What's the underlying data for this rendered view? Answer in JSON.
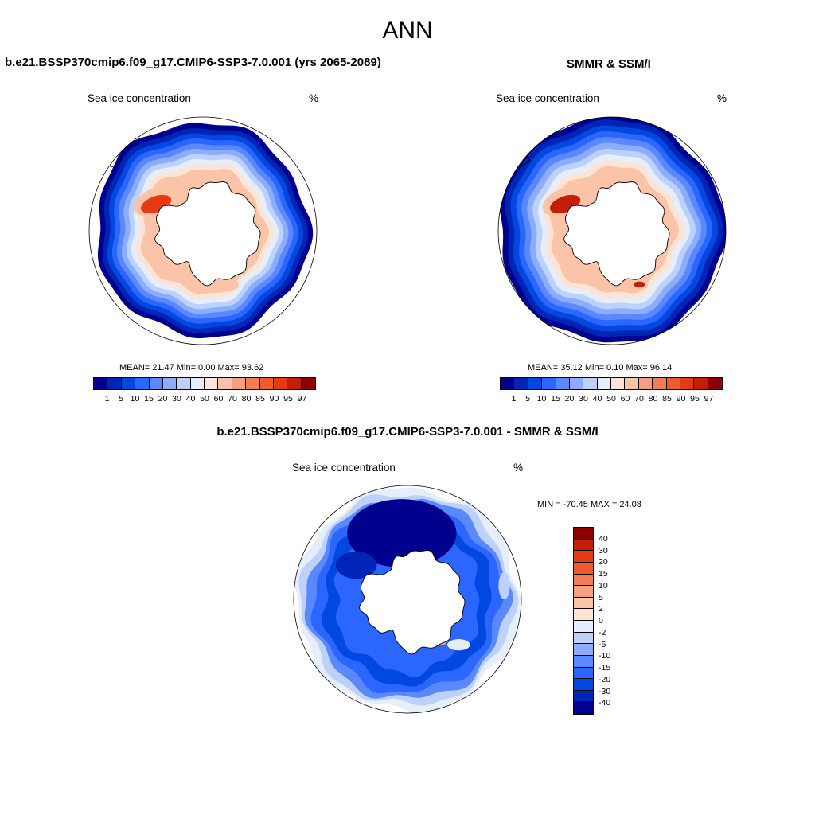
{
  "title": "ANN",
  "colors": {
    "conc_palette": [
      "#00008f",
      "#0024b5",
      "#0048e0",
      "#2a66ff",
      "#5a88ff",
      "#8cacfc",
      "#bcd2fa",
      "#e6eefc",
      "#fde4d4",
      "#fbc4a8",
      "#f7a07e",
      "#f57c58",
      "#f05a32",
      "#e63a14",
      "#c41e08",
      "#8c0000"
    ],
    "diff_palette": [
      "#00008f",
      "#0024b5",
      "#0048e0",
      "#2a66ff",
      "#5a88ff",
      "#8cacfc",
      "#bcd2fa",
      "#e6eefc",
      "#fde4d4",
      "#fbc4a8",
      "#f7a07e",
      "#f57c58",
      "#f05a32",
      "#e63a14",
      "#c41e08",
      "#8c0000"
    ],
    "land": "#ffffff",
    "coast": "#000000"
  },
  "panels": [
    {
      "title": "b.e21.BSSP370cmip6.f09_g17.CMIP6-SSP3-7.0.001 (yrs 2065-2089)",
      "field": "Sea ice concentration",
      "units": "%",
      "stats": "MEAN=  21.47  Min=   0.00  Max=  93.62",
      "map": {
        "ice_edge": 0.93,
        "shelf_hot": "#e63a14",
        "weddell_level": 0.62,
        "ross_level": 0.62,
        "ring_peak": 0.62
      }
    },
    {
      "title": "SMMR & SSM/I",
      "field": "Sea ice concentration",
      "units": "%",
      "stats": "MEAN=  35.12  Min=   0.10  Max=  96.14",
      "map": {
        "ice_edge": 0.99,
        "shelf_hot": "#c41e08",
        "weddell_level": 0.95,
        "ross_level": 0.85,
        "ring_peak": 0.66
      }
    },
    {
      "title": "b.e21.BSSP370cmip6.f09_g17.CMIP6-SSP3-7.0.001 - SMMR & SSM/I",
      "field": "Sea ice concentration",
      "units": "%",
      "stats": "MIN = -70.45 MAX =  24.08"
    }
  ],
  "conc_colorbar_labels": [
    "1",
    "5",
    "10",
    "15",
    "20",
    "30",
    "40",
    "50",
    "60",
    "70",
    "80",
    "85",
    "90",
    "95",
    "97"
  ],
  "diff_colorbar_labels": [
    "40",
    "30",
    "20",
    "15",
    "10",
    "5",
    "2",
    "0",
    "-2",
    "-5",
    "-10",
    "-15",
    "-20",
    "-30",
    "-40"
  ]
}
